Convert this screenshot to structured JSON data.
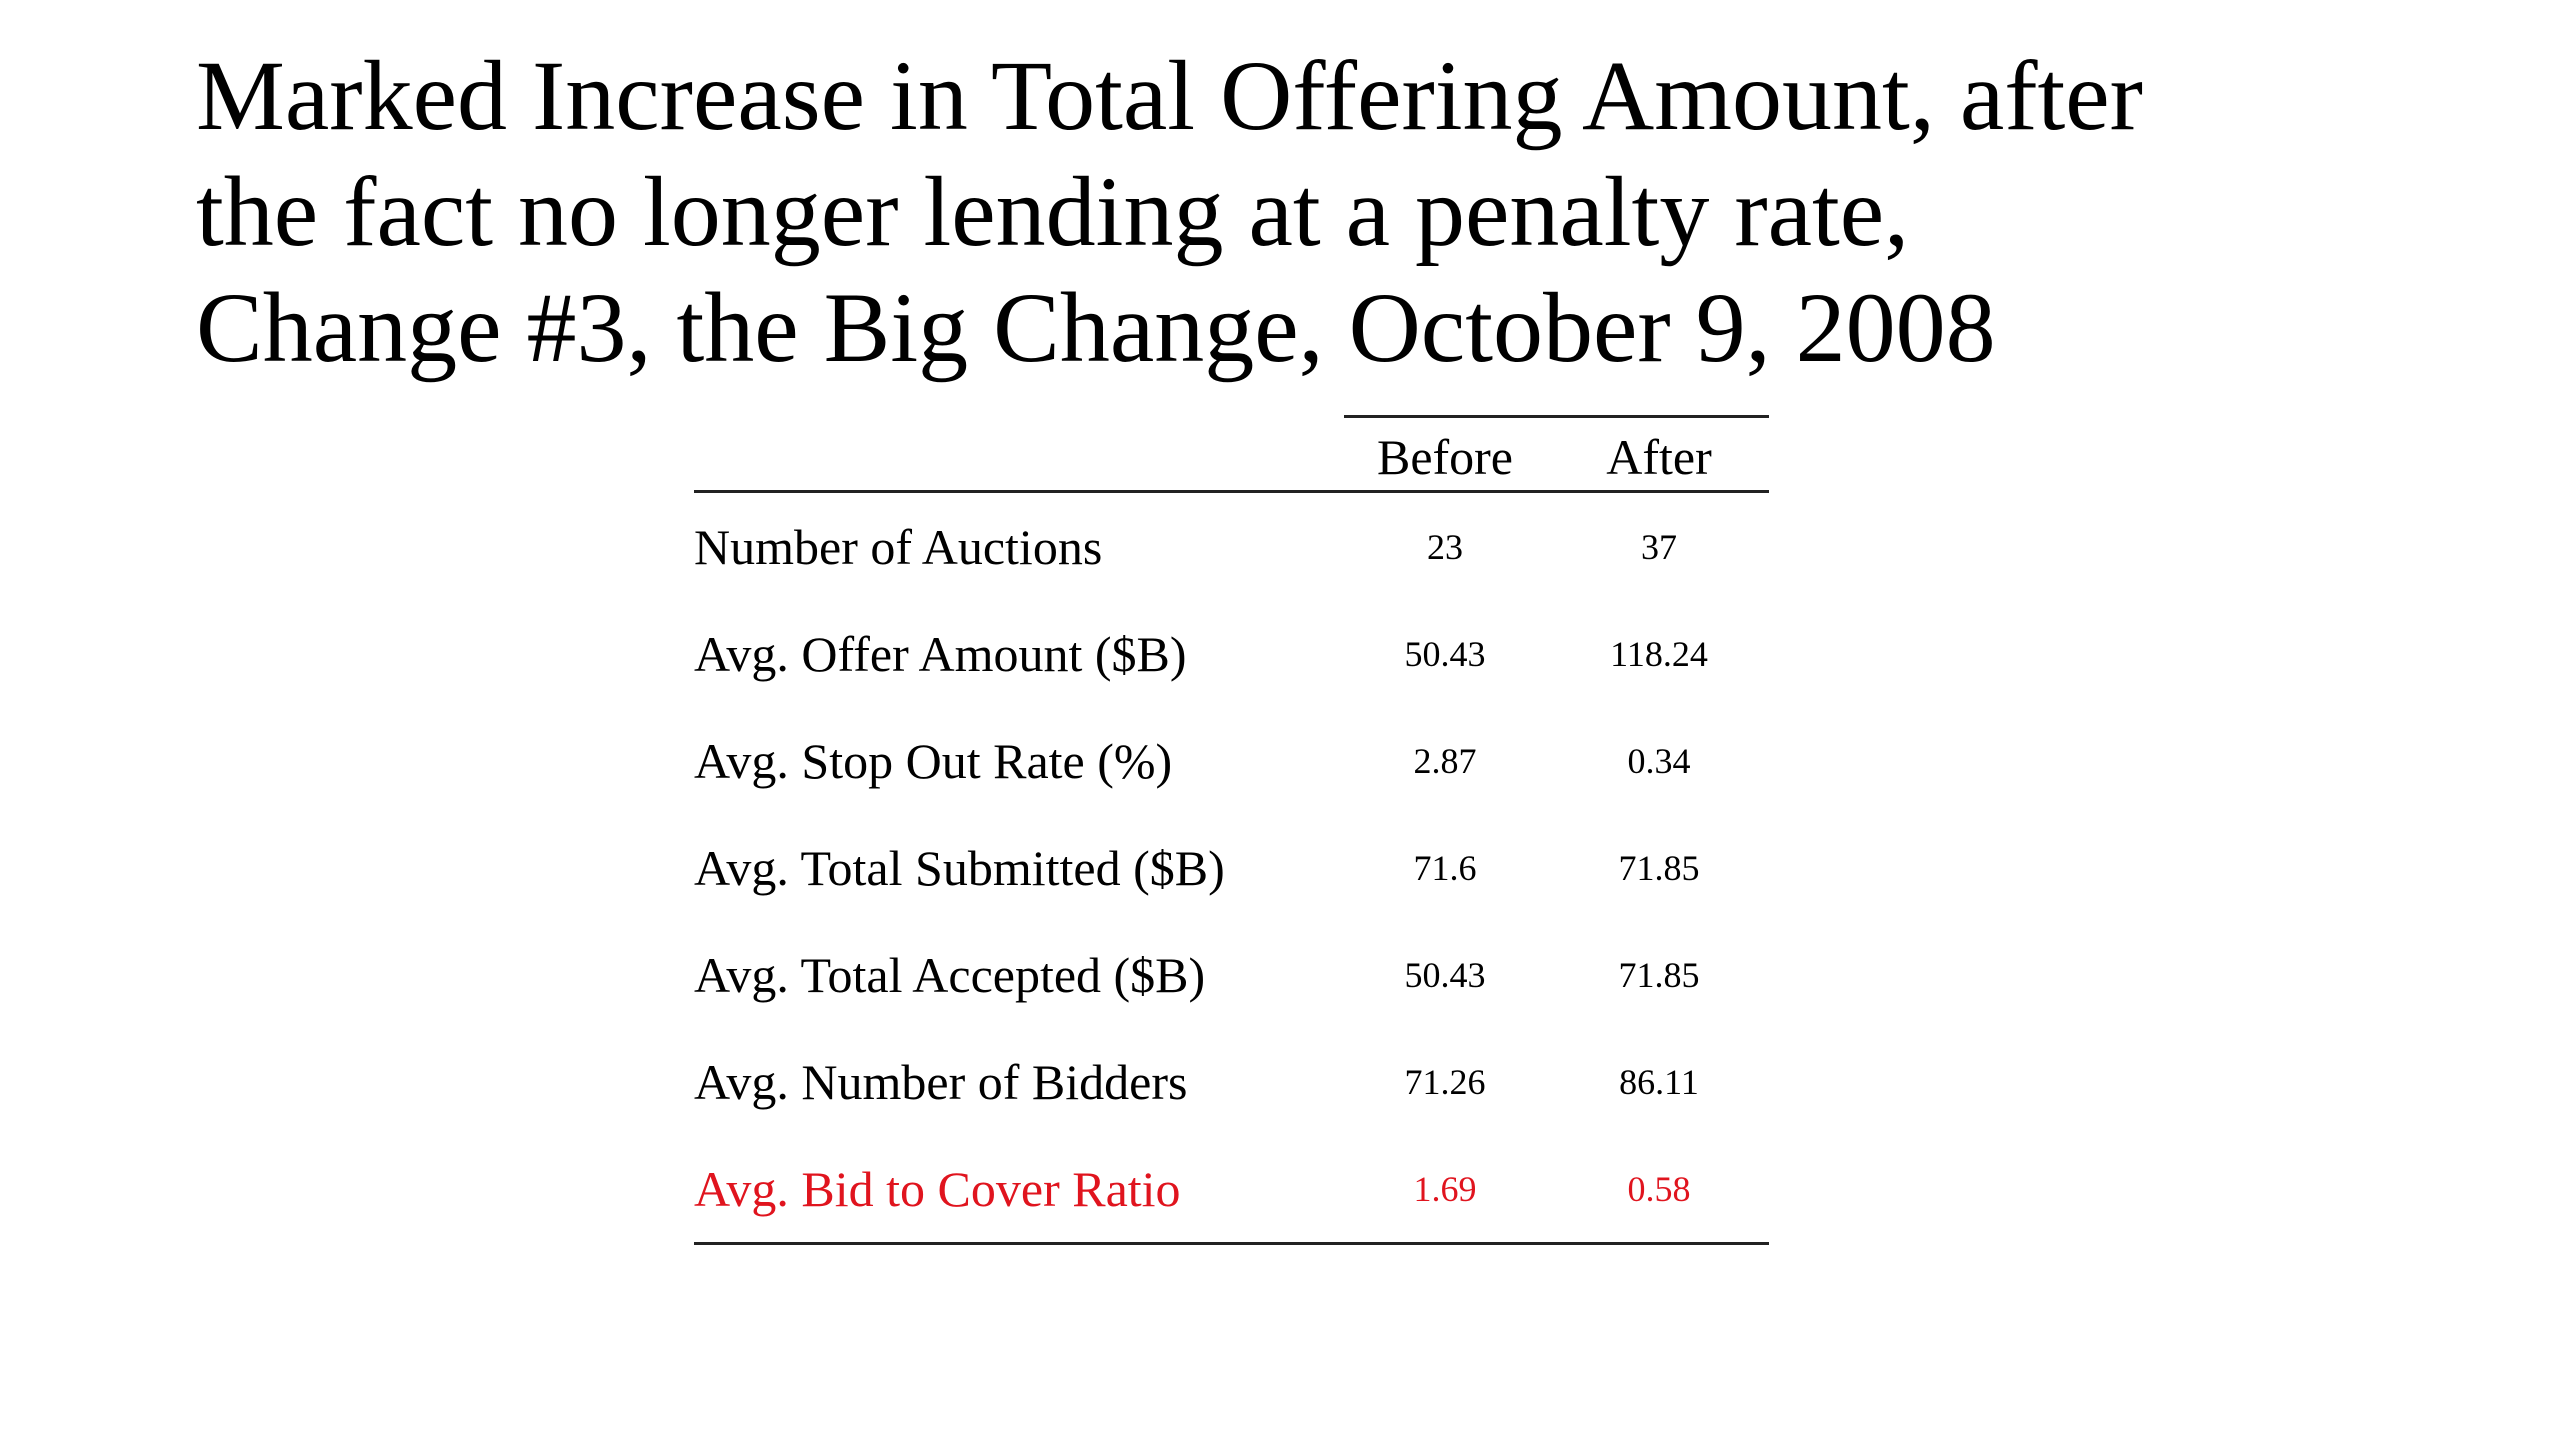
{
  "slide": {
    "title_lines": [
      "Marked Increase in Total Offering Amount, after",
      "the fact no longer lending at a penalty rate,",
      "Change #3, the Big Change, October 9, 2008"
    ]
  },
  "table": {
    "headers": [
      "Before",
      "After"
    ],
    "rows": [
      {
        "label": "Number of Auctions",
        "before": "23",
        "after": "37",
        "color": "#000000"
      },
      {
        "label": "Avg. Offer Amount ($B)",
        "before": "50.43",
        "after": "118.24",
        "color": "#000000"
      },
      {
        "label": "Avg. Stop Out Rate (%)",
        "before": "2.87",
        "after": "0.34",
        "color": "#000000"
      },
      {
        "label": "Avg. Total Submitted ($B)",
        "before": "71.6",
        "after": "71.85",
        "color": "#000000"
      },
      {
        "label": "Avg. Total Accepted ($B)",
        "before": "50.43",
        "after": "71.85",
        "color": "#000000"
      },
      {
        "label": "Avg. Number of Bidders",
        "before": "71.26",
        "after": "86.11",
        "color": "#000000"
      },
      {
        "label": "Avg. Bid to Cover Ratio",
        "before": "1.69",
        "after": "0.58",
        "color": "#e0141e"
      }
    ]
  }
}
